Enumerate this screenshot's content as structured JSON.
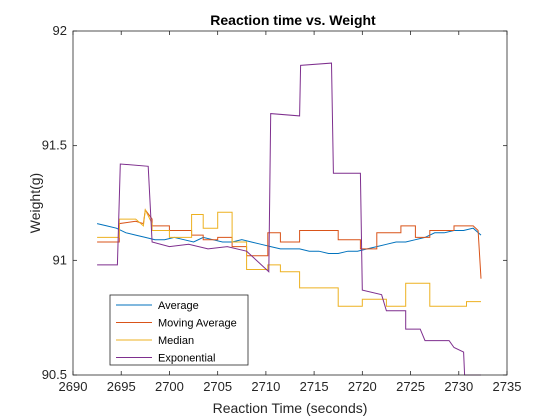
{
  "chart_data": {
    "type": "line",
    "title": "Reaction time vs. Weight",
    "xlabel": "Reaction Time (seconds)",
    "ylabel": "Weight(g)",
    "xlim": [
      2690,
      2735
    ],
    "ylim": [
      90.5,
      92
    ],
    "xticks": [
      2690,
      2695,
      2700,
      2705,
      2710,
      2715,
      2720,
      2725,
      2730,
      2735
    ],
    "yticks": [
      90.5,
      91,
      91.5,
      92
    ],
    "xtick_labels": [
      "2690",
      "2695",
      "2700",
      "2705",
      "2710",
      "2715",
      "2720",
      "2725",
      "2730",
      "2735"
    ],
    "ytick_labels": [
      "90.5",
      "91",
      "91.5",
      "92"
    ],
    "grid": false,
    "legend_position": "bottom-left",
    "series": [
      {
        "name": "Average",
        "color": "#0072BD",
        "x": [
          2692.5,
          2693.5,
          2694.5,
          2695.5,
          2696.5,
          2697.5,
          2698.5,
          2699.5,
          2700.5,
          2701.5,
          2702.5,
          2703.5,
          2704.5,
          2705.5,
          2706.5,
          2707.5,
          2708.5,
          2709.5,
          2710.5,
          2711.5,
          2712.5,
          2713.5,
          2714.5,
          2715.5,
          2716.5,
          2717.5,
          2718.5,
          2719.5,
          2720.5,
          2721.5,
          2722.5,
          2723.5,
          2724.5,
          2725.5,
          2726.5,
          2727.5,
          2728.5,
          2729.5,
          2730.5,
          2731.5,
          2732.3
        ],
        "y": [
          91.16,
          91.15,
          91.14,
          91.12,
          91.11,
          91.1,
          91.09,
          91.09,
          91.1,
          91.09,
          91.08,
          91.1,
          91.09,
          91.08,
          91.08,
          91.09,
          91.08,
          91.07,
          91.06,
          91.05,
          91.05,
          91.05,
          91.04,
          91.04,
          91.03,
          91.03,
          91.04,
          91.04,
          91.05,
          91.06,
          91.07,
          91.08,
          91.08,
          91.09,
          91.1,
          91.12,
          91.12,
          91.13,
          91.13,
          91.14,
          91.11
        ]
      },
      {
        "name": "Moving Average",
        "color": "#D95319",
        "x": [
          2692.5,
          2694.8,
          2694.8,
          2696.5,
          2697.3,
          2697.5,
          2698.2,
          2698.2,
          2700.0,
          2700.0,
          2702.3,
          2702.3,
          2703.5,
          2703.5,
          2705.0,
          2705.0,
          2706.5,
          2706.5,
          2708.0,
          2708.0,
          2710.2,
          2710.2,
          2711.5,
          2711.5,
          2713.5,
          2713.5,
          2717.5,
          2717.5,
          2719.8,
          2719.8,
          2721.5,
          2721.5,
          2724.0,
          2724.0,
          2725.5,
          2725.5,
          2727.0,
          2727.0,
          2729.5,
          2729.5,
          2731.5,
          2732.0,
          2732.3
        ],
        "y": [
          91.08,
          91.08,
          91.16,
          91.17,
          91.16,
          91.22,
          91.18,
          91.15,
          91.15,
          91.13,
          91.13,
          91.11,
          91.11,
          91.09,
          91.09,
          91.1,
          91.1,
          91.06,
          91.06,
          91.02,
          91.02,
          91.12,
          91.12,
          91.08,
          91.08,
          91.13,
          91.13,
          91.09,
          91.09,
          91.05,
          91.05,
          91.12,
          91.12,
          91.15,
          91.15,
          91.1,
          91.1,
          91.13,
          91.13,
          91.15,
          91.15,
          91.13,
          90.92
        ]
      },
      {
        "name": "Median",
        "color": "#EDB120",
        "x": [
          2692.5,
          2694.8,
          2694.8,
          2696.5,
          2697.3,
          2697.5,
          2698.2,
          2698.2,
          2700.0,
          2700.0,
          2702.3,
          2702.3,
          2703.5,
          2703.5,
          2705.0,
          2705.0,
          2706.5,
          2706.5,
          2708.0,
          2708.0,
          2710.2,
          2710.2,
          2711.5,
          2711.5,
          2713.5,
          2713.5,
          2715.5,
          2715.5,
          2717.5,
          2717.5,
          2720.0,
          2720.0,
          2722.5,
          2722.5,
          2724.5,
          2724.5,
          2727.0,
          2727.0,
          2729.5,
          2729.5,
          2730.8,
          2730.8,
          2732.3
        ],
        "y": [
          91.1,
          91.1,
          91.18,
          91.18,
          91.15,
          91.22,
          91.16,
          91.13,
          91.13,
          91.1,
          91.1,
          91.2,
          91.2,
          91.14,
          91.14,
          91.21,
          91.21,
          91.08,
          91.08,
          90.96,
          90.96,
          90.98,
          90.98,
          90.95,
          90.95,
          90.88,
          90.88,
          90.88,
          90.88,
          90.8,
          90.8,
          90.83,
          90.83,
          90.8,
          90.8,
          90.9,
          90.9,
          90.8,
          90.8,
          90.8,
          90.8,
          90.82,
          90.82
        ]
      },
      {
        "name": "Exponential",
        "color": "#7E2F8E",
        "x": [
          2692.5,
          2694.6,
          2694.9,
          2697.8,
          2698.2,
          2700.0,
          2702.0,
          2704.0,
          2706.0,
          2708.0,
          2710.3,
          2710.5,
          2713.5,
          2713.6,
          2716.8,
          2717.0,
          2719.8,
          2720.0,
          2722.0,
          2722.5,
          2724.5,
          2724.5,
          2726.0,
          2726.5,
          2729.0,
          2729.5,
          2730.5,
          2730.6,
          2732.3
        ],
        "y": [
          90.98,
          90.98,
          91.42,
          91.41,
          91.08,
          91.06,
          91.07,
          91.05,
          91.06,
          91.04,
          90.95,
          91.64,
          91.63,
          91.85,
          91.86,
          91.38,
          91.38,
          90.87,
          90.85,
          90.78,
          90.78,
          90.7,
          90.7,
          90.65,
          90.65,
          90.62,
          90.6,
          90.5,
          90.5
        ]
      }
    ]
  }
}
